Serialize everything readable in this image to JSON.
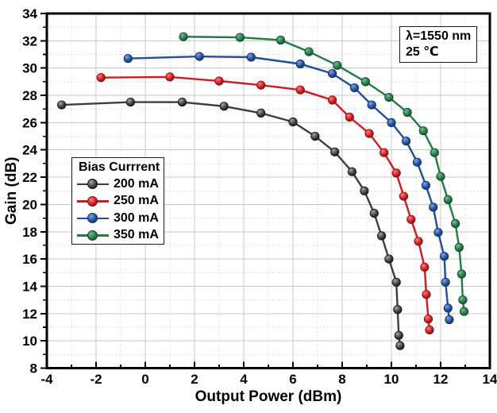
{
  "figure": {
    "background": "#ffffff"
  },
  "chart_data": {
    "type": "line",
    "title": "",
    "xlabel": "Output Power (dBm)",
    "ylabel": "Gain (dB)",
    "xlim": [
      -4,
      14
    ],
    "ylim": [
      8,
      34
    ],
    "x_major_tick_step": 2,
    "x_minor_tick_step": 1,
    "y_major_tick_step": 2,
    "y_minor_tick_step": 1,
    "x_tick_labels": [
      "-4",
      "-2",
      "0",
      "2",
      "4",
      "6",
      "8",
      "10",
      "12",
      "14"
    ],
    "y_tick_labels": [
      "8",
      "10",
      "12",
      "14",
      "16",
      "18",
      "20",
      "22",
      "24",
      "26",
      "28",
      "30",
      "32",
      "34"
    ],
    "grid": {
      "major": true,
      "minor": true,
      "major_color": "#c7c7c7",
      "minor_color": "#d5d5d5"
    },
    "frame_color": "#000000",
    "legend": {
      "title": "Bias Currrent",
      "position": "middle-left"
    },
    "annotation": {
      "lines": [
        "λ=1550 nm",
        "25 ℃"
      ]
    },
    "series": [
      {
        "name": "200 mA",
        "color": "#3d3d3d",
        "color_light": "#a6a6a6",
        "color_dark": "#101010",
        "points": [
          [
            -3.4,
            27.3
          ],
          [
            -0.6,
            27.5
          ],
          [
            1.5,
            27.5
          ],
          [
            3.2,
            27.2
          ],
          [
            4.7,
            26.7
          ],
          [
            6.0,
            26.05
          ],
          [
            6.9,
            25.0
          ],
          [
            7.7,
            23.85
          ],
          [
            8.4,
            22.4
          ],
          [
            8.9,
            21.0
          ],
          [
            9.3,
            19.35
          ],
          [
            9.6,
            17.7
          ],
          [
            9.9,
            16.0
          ],
          [
            10.2,
            14.3
          ],
          [
            10.25,
            12.3
          ],
          [
            10.3,
            10.4
          ],
          [
            10.35,
            9.65
          ]
        ]
      },
      {
        "name": "250 mA",
        "color": "#d2191f",
        "color_light": "#f0837f",
        "color_dark": "#7c0c10",
        "points": [
          [
            -1.8,
            29.3
          ],
          [
            1.0,
            29.35
          ],
          [
            3.0,
            29.05
          ],
          [
            4.7,
            28.75
          ],
          [
            6.3,
            28.4
          ],
          [
            7.6,
            27.65
          ],
          [
            8.3,
            26.4
          ],
          [
            9.1,
            25.2
          ],
          [
            9.7,
            23.8
          ],
          [
            10.2,
            22.3
          ],
          [
            10.5,
            20.6
          ],
          [
            10.8,
            18.9
          ],
          [
            11.1,
            17.3
          ],
          [
            11.35,
            15.4
          ],
          [
            11.42,
            13.4
          ],
          [
            11.5,
            11.6
          ],
          [
            11.55,
            10.8
          ]
        ]
      },
      {
        "name": "300 mA",
        "color": "#1f4da0",
        "color_light": "#86a3da",
        "color_dark": "#112e63",
        "points": [
          [
            -0.7,
            30.7
          ],
          [
            2.2,
            30.85
          ],
          [
            4.3,
            30.8
          ],
          [
            6.3,
            30.3
          ],
          [
            7.6,
            29.6
          ],
          [
            8.5,
            28.55
          ],
          [
            9.2,
            27.3
          ],
          [
            10.0,
            26.0
          ],
          [
            10.6,
            24.65
          ],
          [
            11.05,
            23.1
          ],
          [
            11.4,
            21.4
          ],
          [
            11.7,
            19.8
          ],
          [
            11.9,
            17.95
          ],
          [
            12.15,
            16.2
          ],
          [
            12.2,
            14.3
          ],
          [
            12.3,
            12.4
          ],
          [
            12.35,
            11.55
          ]
        ]
      },
      {
        "name": "350 mA",
        "color": "#217b45",
        "color_light": "#7db897",
        "color_dark": "#0f4526",
        "points": [
          [
            1.55,
            32.3
          ],
          [
            3.85,
            32.25
          ],
          [
            5.5,
            32.05
          ],
          [
            6.65,
            31.2
          ],
          [
            7.8,
            30.2
          ],
          [
            8.95,
            29.0
          ],
          [
            9.9,
            27.85
          ],
          [
            10.65,
            26.75
          ],
          [
            11.3,
            25.4
          ],
          [
            11.75,
            23.8
          ],
          [
            12.0,
            22.05
          ],
          [
            12.3,
            20.35
          ],
          [
            12.6,
            18.6
          ],
          [
            12.75,
            16.85
          ],
          [
            12.85,
            14.9
          ],
          [
            12.9,
            13.0
          ],
          [
            12.95,
            12.15
          ]
        ]
      }
    ]
  }
}
